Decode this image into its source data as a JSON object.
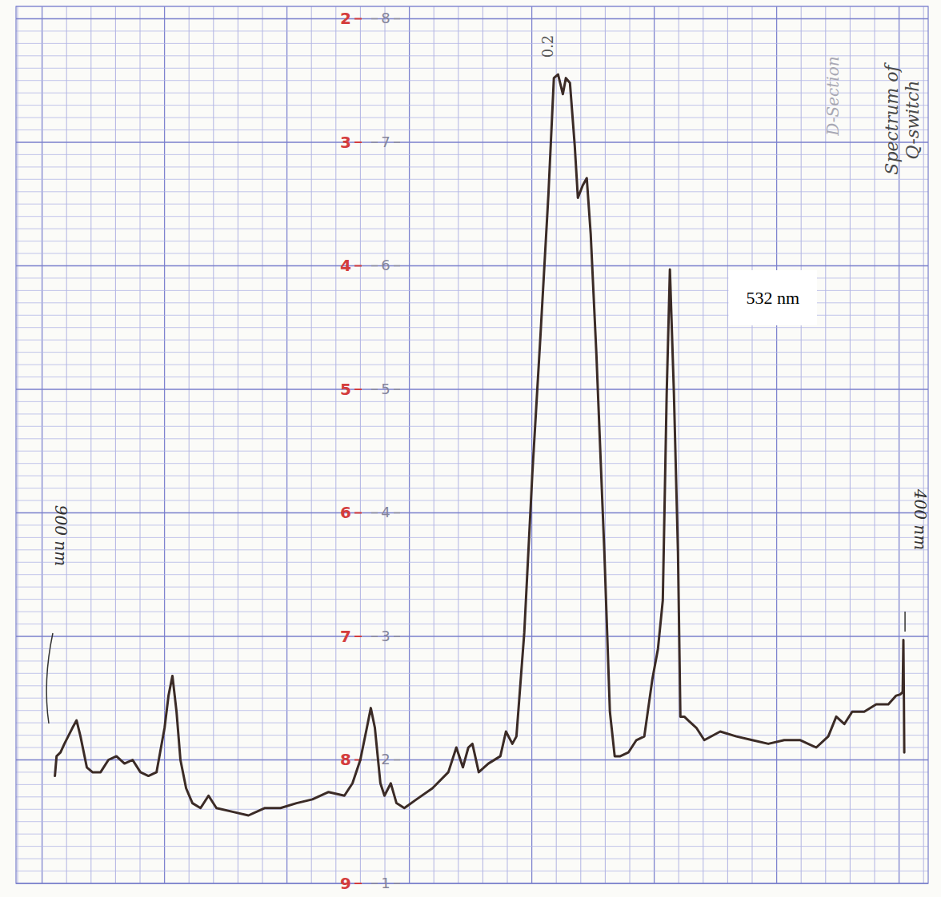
{
  "chart_data": {
    "type": "line",
    "color": "#3b2b26",
    "grid": true,
    "tick_labels": "y",
    "xlim": [
      919,
      386
    ],
    "ylim": [
      1,
      8.1
    ],
    "yticks": [
      1,
      2,
      3,
      4,
      5,
      6,
      7,
      8
    ],
    "y2lim": [
      9,
      1.9
    ],
    "y2ticks": [
      2,
      3,
      4,
      5,
      6,
      7,
      8,
      9
    ],
    "annotations": [
      {
        "text": "900 nm",
        "x": 900
      },
      {
        "text": "400 nm",
        "x": 400
      },
      {
        "text": "532 nm",
        "x": 532
      },
      {
        "text": "0.2",
        "x": 604.7
      },
      {
        "text": "D-Section"
      },
      {
        "text": "Spectrum of"
      },
      {
        "text": "Q-switch"
      }
    ],
    "x": [
      896.3,
      895.3,
      893.0,
      890.7,
      886.0,
      883.6,
      881.3,
      877.6,
      874.3,
      869.6,
      865.0,
      860.3,
      855.6,
      850.9,
      846.3,
      841.6,
      836.9,
      832.2,
      829.9,
      827.6,
      825.2,
      822.9,
      819.6,
      815.9,
      811.2,
      806.5,
      801.9,
      792.5,
      783.2,
      773.8,
      764.5,
      755.1,
      745.8,
      736.4,
      727.1,
      722.4,
      717.8,
      714.0,
      711.7,
      709.3,
      706.1,
      703.7,
      700.0,
      696.7,
      692.1,
      685.0,
      675.7,
      666.4,
      661.7,
      657.9,
      654.7,
      652.3,
      648.6,
      643.0,
      636.0,
      632.7,
      629.0,
      626.6,
      622.0,
      617.3,
      612.6,
      607.9,
      604.7,
      602.3,
      599.5,
      597.7,
      595.3,
      592.5,
      590.7,
      587.9,
      585.5,
      583.2,
      579.9,
      575.2,
      572.0,
      569.2,
      565.9,
      561.2,
      556.5,
      551.9,
      547.2,
      543.9,
      541.1,
      538.8,
      536.9,
      534.6,
      532.2,
      530.8,
      528.5,
      526.2,
      521.5,
      516.8,
      507.5,
      498.1,
      488.8,
      479.4,
      470.1,
      460.7,
      451.4,
      444.4,
      439.7,
      435.0,
      430.4,
      423.4,
      416.4,
      409.3,
      404.7,
      402.3,
      400.9,
      400.5,
      400.2,
      400.0
    ],
    "values": [
      1.87,
      2.03,
      2.06,
      2.13,
      2.26,
      2.32,
      2.19,
      1.94,
      1.9,
      1.9,
      2.0,
      2.03,
      1.97,
      2.0,
      1.9,
      1.87,
      1.9,
      2.26,
      2.52,
      2.68,
      2.39,
      2.0,
      1.77,
      1.65,
      1.61,
      1.71,
      1.61,
      1.58,
      1.55,
      1.61,
      1.61,
      1.65,
      1.68,
      1.74,
      1.71,
      1.81,
      2.0,
      2.26,
      2.42,
      2.26,
      1.81,
      1.71,
      1.81,
      1.65,
      1.61,
      1.68,
      1.77,
      1.9,
      2.1,
      1.94,
      2.1,
      2.13,
      1.9,
      1.97,
      2.03,
      2.23,
      2.13,
      2.19,
      3.03,
      4.32,
      5.42,
      6.58,
      7.52,
      7.55,
      7.39,
      7.52,
      7.48,
      6.97,
      6.55,
      6.65,
      6.71,
      6.26,
      5.29,
      3.68,
      2.39,
      2.03,
      2.03,
      2.06,
      2.16,
      2.19,
      2.65,
      2.9,
      3.29,
      4.97,
      5.97,
      4.97,
      3.68,
      2.35,
      2.35,
      2.32,
      2.26,
      2.16,
      2.23,
      2.19,
      2.16,
      2.13,
      2.16,
      2.16,
      2.1,
      2.19,
      2.35,
      2.29,
      2.39,
      2.39,
      2.45,
      2.45,
      2.52,
      2.53,
      2.55,
      2.97,
      2.52,
      2.06
    ]
  }
}
